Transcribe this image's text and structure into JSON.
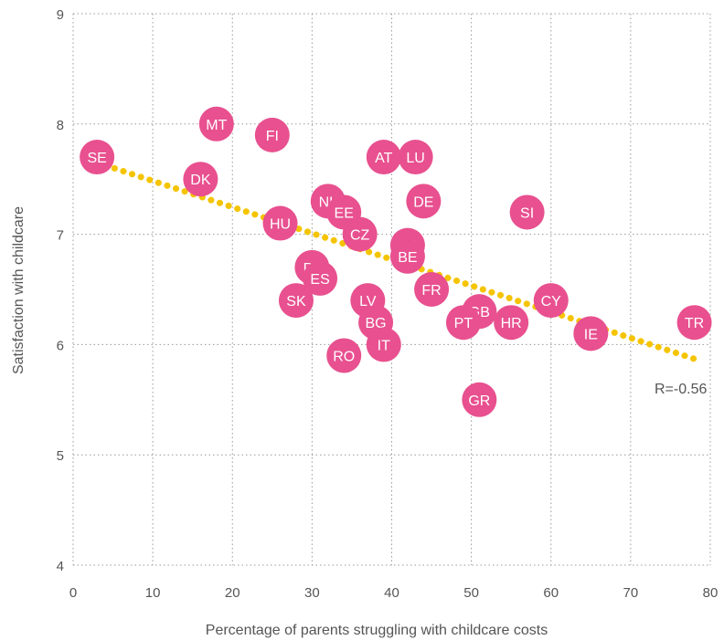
{
  "chart_data": {
    "type": "scatter",
    "title": "",
    "xlabel": "Percentage of parents struggling with childcare costs",
    "ylabel": "Satisfaction with childcare",
    "xlim": [
      0,
      80
    ],
    "ylim": [
      4,
      9
    ],
    "xticks": [
      0,
      10,
      20,
      30,
      40,
      50,
      60,
      70,
      80
    ],
    "yticks": [
      4,
      5,
      6,
      7,
      8,
      9
    ],
    "grid": true,
    "points": [
      {
        "label": "SE",
        "x": 3,
        "y": 7.7
      },
      {
        "label": "MT",
        "x": 18,
        "y": 8.0
      },
      {
        "label": "FI",
        "x": 25,
        "y": 7.9
      },
      {
        "label": "DK",
        "x": 16,
        "y": 7.5
      },
      {
        "label": "AT",
        "x": 39,
        "y": 7.7
      },
      {
        "label": "LU",
        "x": 43,
        "y": 7.7
      },
      {
        "label": "NL",
        "x": 32,
        "y": 7.3
      },
      {
        "label": "EE",
        "x": 34,
        "y": 7.2
      },
      {
        "label": "DE",
        "x": 44,
        "y": 7.3
      },
      {
        "label": "SI",
        "x": 57,
        "y": 7.2
      },
      {
        "label": "HU",
        "x": 26,
        "y": 7.1
      },
      {
        "label": "CZ",
        "x": 36,
        "y": 7.0
      },
      {
        "label": "LT",
        "x": 42,
        "y": 6.9
      },
      {
        "label": "BE",
        "x": 42,
        "y": 6.8
      },
      {
        "label": "PL",
        "x": 30,
        "y": 6.7
      },
      {
        "label": "ES",
        "x": 31,
        "y": 6.6
      },
      {
        "label": "FR",
        "x": 45,
        "y": 6.5
      },
      {
        "label": "SK",
        "x": 28,
        "y": 6.4
      },
      {
        "label": "LV",
        "x": 37,
        "y": 6.4
      },
      {
        "label": "CY",
        "x": 60,
        "y": 6.4
      },
      {
        "label": "GB",
        "x": 51,
        "y": 6.3
      },
      {
        "label": "BG",
        "x": 38,
        "y": 6.2
      },
      {
        "label": "PT",
        "x": 49,
        "y": 6.2
      },
      {
        "label": "HR",
        "x": 55,
        "y": 6.2
      },
      {
        "label": "TR",
        "x": 78,
        "y": 6.2
      },
      {
        "label": "IE",
        "x": 65,
        "y": 6.1
      },
      {
        "label": "IT",
        "x": 39,
        "y": 6.0
      },
      {
        "label": "RO",
        "x": 34,
        "y": 5.9
      },
      {
        "label": "GR",
        "x": 51,
        "y": 5.5
      }
    ],
    "trendline": {
      "x": [
        3,
        78
      ],
      "y": [
        7.65,
        5.87
      ]
    },
    "annotation": "R=-0.56",
    "colors": {
      "point": "#e8508f",
      "trend": "#f5c400",
      "grid": "#999999"
    }
  }
}
